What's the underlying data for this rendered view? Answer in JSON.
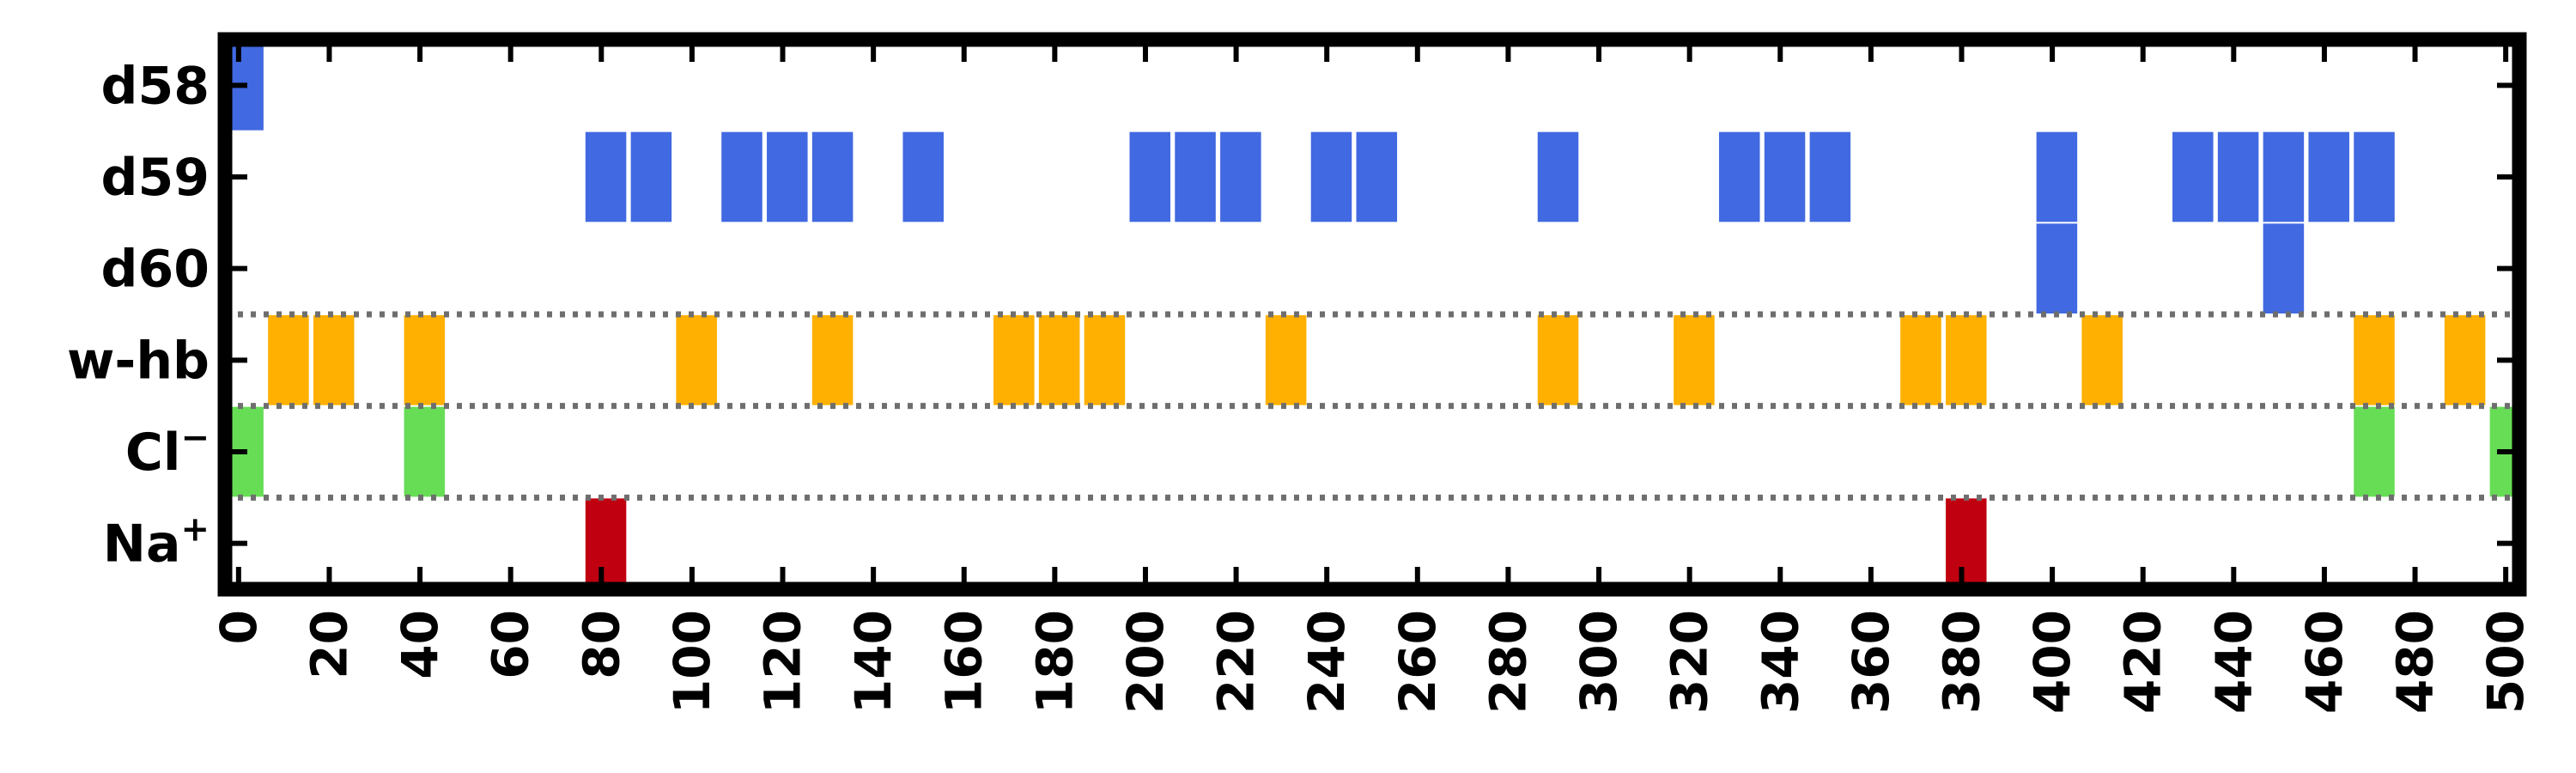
{
  "chart_data": {
    "type": "event-raster",
    "xlim": [
      -3,
      503
    ],
    "x_ticks": [
      "0",
      "20",
      "40",
      "60",
      "80",
      "100",
      "120",
      "140",
      "160",
      "180",
      "200",
      "220",
      "240",
      "260",
      "280",
      "300",
      "320",
      "340",
      "360",
      "380",
      "400",
      "420",
      "440",
      "460",
      "480",
      "500"
    ],
    "rows": [
      {
        "label": "d58",
        "color": "#4169E1",
        "events": [
          1
        ]
      },
      {
        "label": "d59",
        "color": "#4169E1",
        "events": [
          81,
          91,
          111,
          121,
          131,
          151,
          201,
          211,
          221,
          241,
          251,
          291,
          331,
          341,
          351,
          401,
          431,
          441,
          451,
          461,
          471
        ]
      },
      {
        "label": "d60",
        "color": "#4169E1",
        "events": [
          401,
          451
        ]
      },
      {
        "label": "w-hb",
        "color": "#FFB000",
        "events": [
          11,
          21,
          41,
          101,
          131,
          171,
          181,
          191,
          231,
          291,
          321,
          371,
          381,
          411,
          471,
          491
        ]
      },
      {
        "label": "Cl",
        "sup": "−",
        "color": "#66DD55",
        "events": [
          1,
          41,
          471,
          501
        ]
      },
      {
        "label": "Na",
        "sup": "+",
        "color": "#C00010",
        "events": [
          81,
          381
        ]
      }
    ],
    "row_separators_after": [
      "d60",
      "w-hb",
      "Cl"
    ],
    "grid": false
  }
}
